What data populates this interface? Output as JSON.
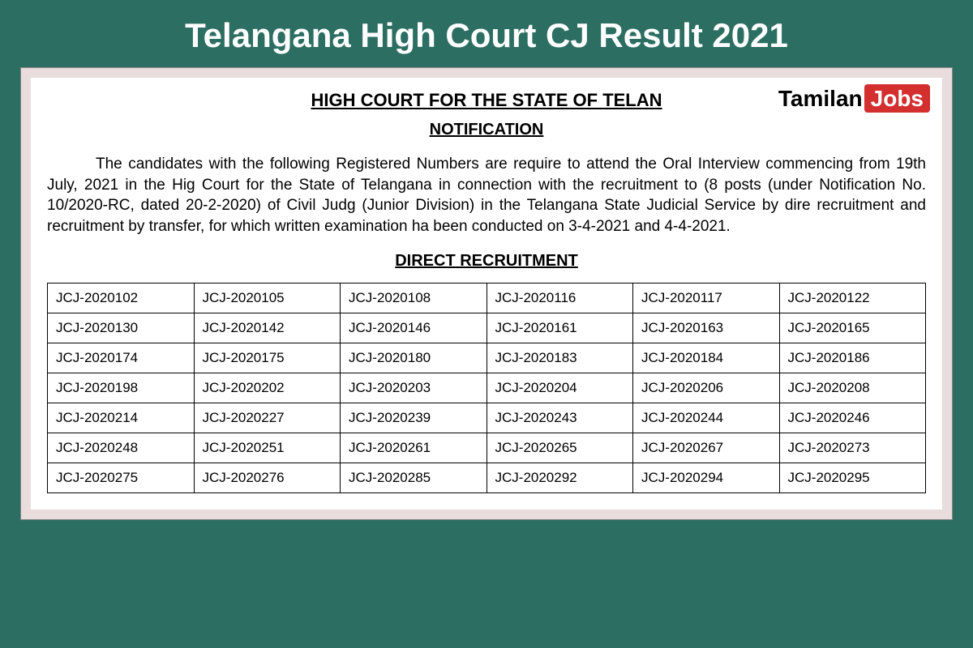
{
  "header": {
    "title": "Telangana High Court CJ Result 2021"
  },
  "watermark": {
    "part1": "Tamilan",
    "part2": "Jobs"
  },
  "document": {
    "heading": "HIGH COURT FOR THE STATE OF TELAN",
    "subheading": "NOTIFICATION",
    "body": "The candidates with the following Registered Numbers are require to attend the Oral Interview commencing from 19th July, 2021 in the Hig Court for the State of Telangana in connection with the recruitment to (8 posts (under Notification No. 10/2020-RC, dated 20-2-2020) of Civil Judg (Junior Division) in the Telangana State Judicial Service by dire recruitment and recruitment by transfer, for which written examination ha been conducted on 3-4-2021 and 4-4-2021.",
    "sectionHeading": "DIRECT RECRUITMENT"
  },
  "table": {
    "rows": [
      [
        "JCJ-2020102",
        "JCJ-2020105",
        "JCJ-2020108",
        "JCJ-2020116",
        "JCJ-2020117",
        "JCJ-2020122"
      ],
      [
        "JCJ-2020130",
        "JCJ-2020142",
        "JCJ-2020146",
        "JCJ-2020161",
        "JCJ-2020163",
        "JCJ-2020165"
      ],
      [
        "JCJ-2020174",
        "JCJ-2020175",
        "JCJ-2020180",
        "JCJ-2020183",
        "JCJ-2020184",
        "JCJ-2020186"
      ],
      [
        "JCJ-2020198",
        "JCJ-2020202",
        "JCJ-2020203",
        "JCJ-2020204",
        "JCJ-2020206",
        "JCJ-2020208"
      ],
      [
        "JCJ-2020214",
        "JCJ-2020227",
        "JCJ-2020239",
        "JCJ-2020243",
        "JCJ-2020244",
        "JCJ-2020246"
      ],
      [
        "JCJ-2020248",
        "JCJ-2020251",
        "JCJ-2020261",
        "JCJ-2020265",
        "JCJ-2020267",
        "JCJ-2020273"
      ],
      [
        "JCJ-2020275",
        "JCJ-2020276",
        "JCJ-2020285",
        "JCJ-2020292",
        "JCJ-2020294",
        "JCJ-2020295"
      ]
    ]
  },
  "colors": {
    "background": "#2d6e62",
    "frameBackground": "#e8dcdc",
    "documentBackground": "#ffffff",
    "titleText": "#ffffff",
    "bodyText": "#000000",
    "watermarkAccent": "#d32f2f"
  }
}
